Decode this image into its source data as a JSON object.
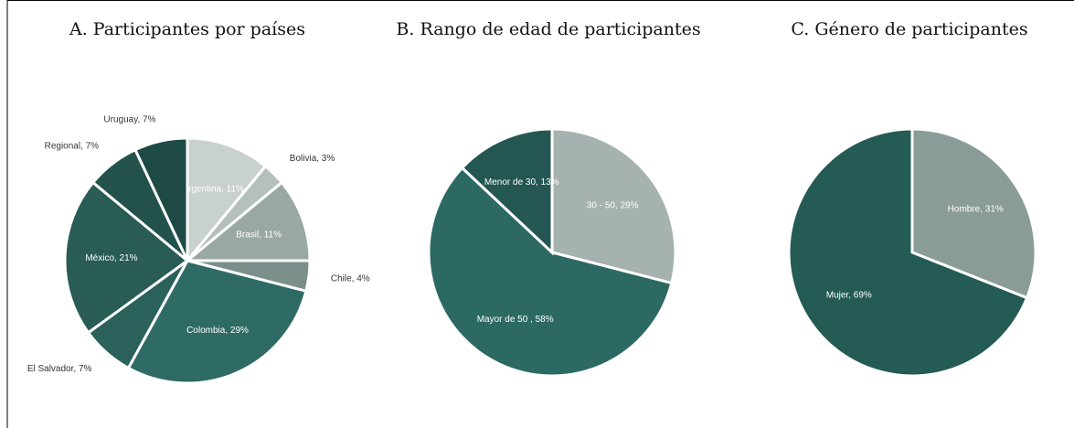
{
  "chart_data": [
    {
      "type": "pie",
      "title": "A. Participantes por países",
      "values": [
        11,
        3,
        11,
        4,
        29,
        7,
        21,
        7,
        7
      ],
      "value_labels": [
        "Argentina, 11%",
        "Bolivia, 3%",
        "Brasil, 11%",
        "Chile, 4%",
        "Colombia, 29%",
        "El Salvador, 7%",
        "México, 21%",
        "Regional, 7%",
        "Uruguay, 7%"
      ],
      "colors": [
        "#c9d1ce",
        "#b5bfbb",
        "#9aa8a4",
        "#7b8f8a",
        "#2e6b64",
        "#2a615a",
        "#285c55",
        "#23524c",
        "#1e4a45"
      ]
    },
    {
      "type": "pie",
      "title": "B. Rango de edad de participantes",
      "values": [
        29,
        58,
        13
      ],
      "value_labels": [
        "30 - 50, 29%",
        "Mayor de 50 , 58%",
        "Menor de 30, 13%"
      ],
      "colors": [
        "#a5b2af",
        "#2c6963",
        "#245751"
      ]
    },
    {
      "type": "pie",
      "title": "C. Género de participantes",
      "values": [
        31,
        69
      ],
      "value_labels": [
        "Hombre, 31%",
        "Mujer, 69%"
      ],
      "colors": [
        "#8a9c97",
        "#245b54"
      ]
    }
  ]
}
